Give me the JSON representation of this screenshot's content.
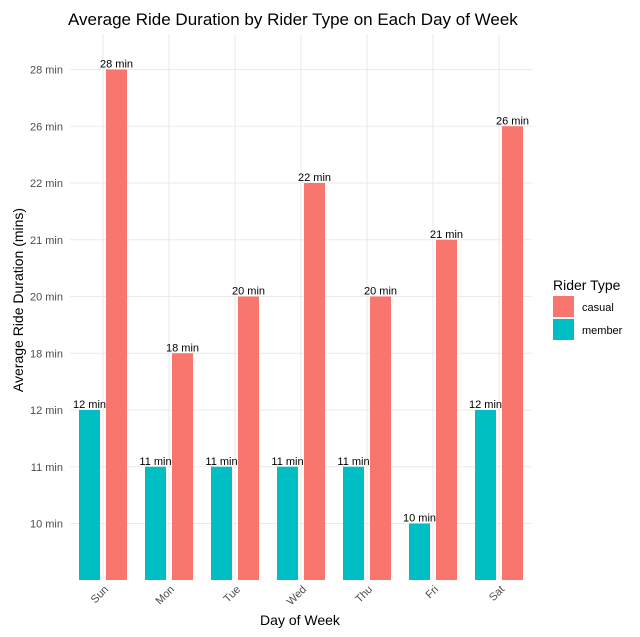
{
  "chart_data": {
    "type": "bar",
    "title": "Average Ride Duration by Rider Type on Each Day of Week",
    "xlabel": "Day of Week",
    "ylabel": "Average Ride Duration (mins)",
    "categories": [
      "Sun",
      "Mon",
      "Tue",
      "Wed",
      "Thu",
      "Fri",
      "Sat"
    ],
    "y_tick_labels": [
      "10 min",
      "11 min",
      "12 min",
      "18 min",
      "20 min",
      "21 min",
      "22 min",
      "26 min",
      "28 min"
    ],
    "y_scale": "discrete",
    "grid": true,
    "legend": {
      "title": "Rider Type",
      "position": "right"
    },
    "series": [
      {
        "name": "member",
        "color": "#00BFC4",
        "values": [
          12,
          11,
          11,
          11,
          11,
          10,
          12
        ],
        "labels": [
          "12 min",
          "11 min",
          "11 min",
          "11 min",
          "11 min",
          "10 min",
          "12 min"
        ]
      },
      {
        "name": "casual",
        "color": "#F8766D",
        "values": [
          28,
          18,
          20,
          22,
          20,
          21,
          26
        ],
        "labels": [
          "28 min",
          "18 min",
          "20 min",
          "22 min",
          "20 min",
          "21 min",
          "26 min"
        ]
      }
    ],
    "legend_order": [
      "casual",
      "member"
    ]
  }
}
